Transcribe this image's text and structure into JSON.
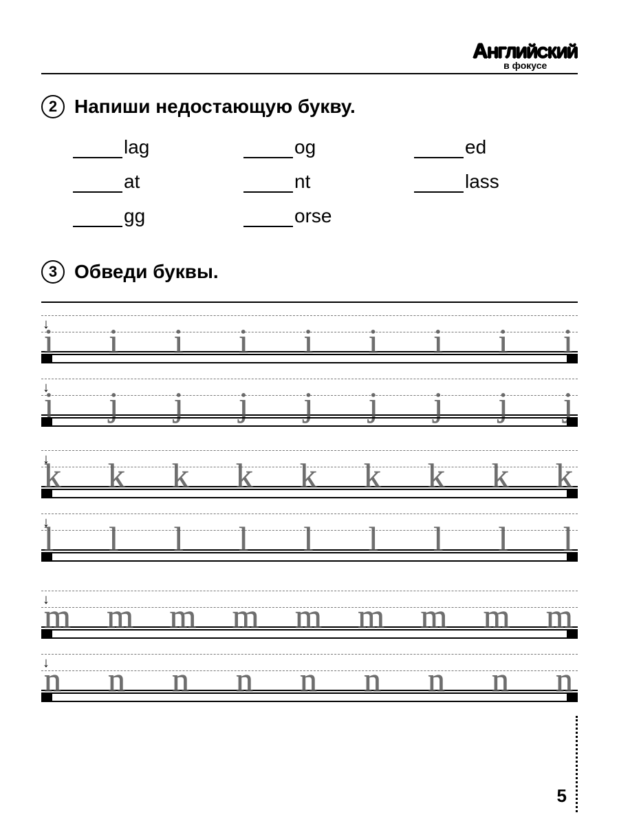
{
  "logo": {
    "line1_prefix": "А",
    "line1_rest": "НГЛИЙСКИЙ",
    "line2": "в фокусе"
  },
  "ex2": {
    "number": "2",
    "title": "Напиши  недостающую  букву.",
    "words": [
      "lag",
      "og",
      "ed",
      "at",
      "nt",
      "lass",
      "gg",
      "orse"
    ]
  },
  "ex3": {
    "number": "3",
    "title": "Обведи  буквы.",
    "rows": [
      {
        "letter": "i",
        "count": 9,
        "has_dot": true,
        "descender": false,
        "bar": true
      },
      {
        "letter": "j",
        "count": 9,
        "has_dot": true,
        "descender": true,
        "bar": true
      },
      {
        "letter": "k",
        "count": 9,
        "has_dot": false,
        "descender": false,
        "bar": true
      },
      {
        "letter": "l",
        "count": 9,
        "has_dot": false,
        "descender": false,
        "bar": true
      },
      {
        "letter": "m",
        "count": 9,
        "has_dot": false,
        "descender": false,
        "bar": true
      },
      {
        "letter": "n",
        "count": 9,
        "has_dot": false,
        "descender": false,
        "bar": true
      }
    ],
    "letter_fontsize": 50,
    "guide_color": "#777777",
    "letter_color": "#555555"
  },
  "page_number": "5",
  "colors": {
    "text": "#000000",
    "background": "#ffffff"
  }
}
